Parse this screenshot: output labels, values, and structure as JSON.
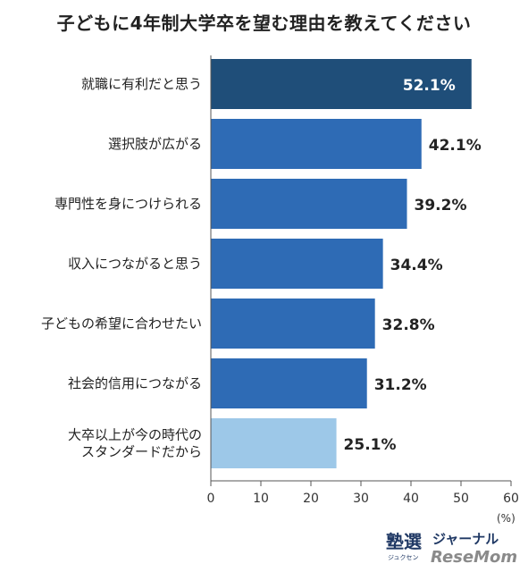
{
  "title": "子どもに4年制大学卒を望む理由を教えてください",
  "unit": "(%)",
  "logo": {
    "main": "塾選",
    "sub": "ジャーナル",
    "small": "ジュクセン",
    "brand": "ReseMom"
  },
  "colors": {
    "top_bar": "#1f4e79",
    "bar": "#2e6bb5",
    "last_bar": "#9dc8e8",
    "axis": "#555555"
  },
  "chart_data": {
    "type": "bar",
    "orientation": "horizontal",
    "title": "子どもに4年制大学卒を望む理由を教えてください",
    "categories": [
      [
        "就職に有利だと思う"
      ],
      [
        "選択肢が広がる"
      ],
      [
        "専門性を身につけられる"
      ],
      [
        "収入につながると思う"
      ],
      [
        "子どもの希望に合わせたい"
      ],
      [
        "社会的信用につながる"
      ],
      [
        "大卒以上が今の時代の",
        "スタンダードだから"
      ]
    ],
    "values": [
      52.1,
      42.1,
      39.2,
      34.4,
      32.8,
      31.2,
      25.1
    ],
    "value_labels": [
      "52.1%",
      "42.1%",
      "39.2%",
      "34.4%",
      "32.8%",
      "31.2%",
      "25.1%"
    ],
    "xlim": [
      0,
      60
    ],
    "xticks": [
      0,
      10,
      20,
      30,
      40,
      50,
      60
    ],
    "xlabel": "(%)",
    "grid": false
  }
}
